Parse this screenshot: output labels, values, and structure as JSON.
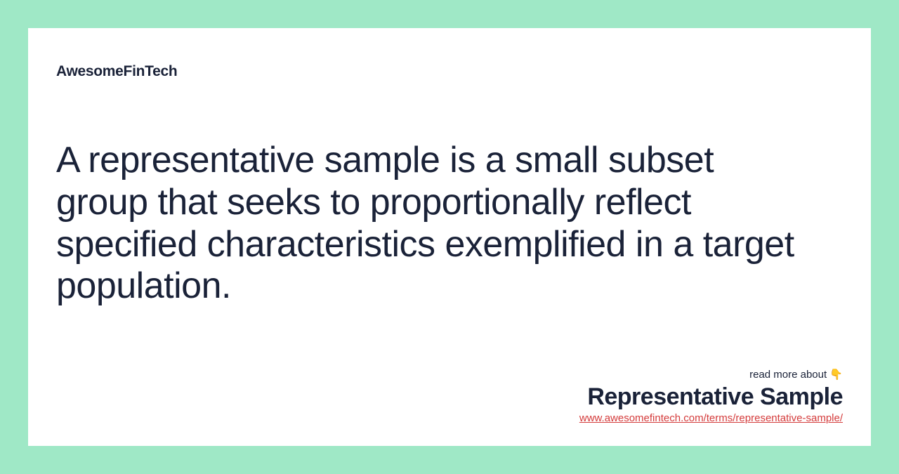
{
  "brand": "AwesomeFinTech",
  "definition": "A representative sample is a small subset group that seeks to proportionally reflect specified characteristics exemplified in a target population.",
  "footer": {
    "read_more": "read more about 👇",
    "term_title": "Representative Sample",
    "url": "www.awesomefintech.com/terms/representative-sample/"
  },
  "colors": {
    "background": "#9fe8c6",
    "card_background": "#ffffff",
    "text_primary": "#1a2238",
    "link": "#d43b3b"
  }
}
